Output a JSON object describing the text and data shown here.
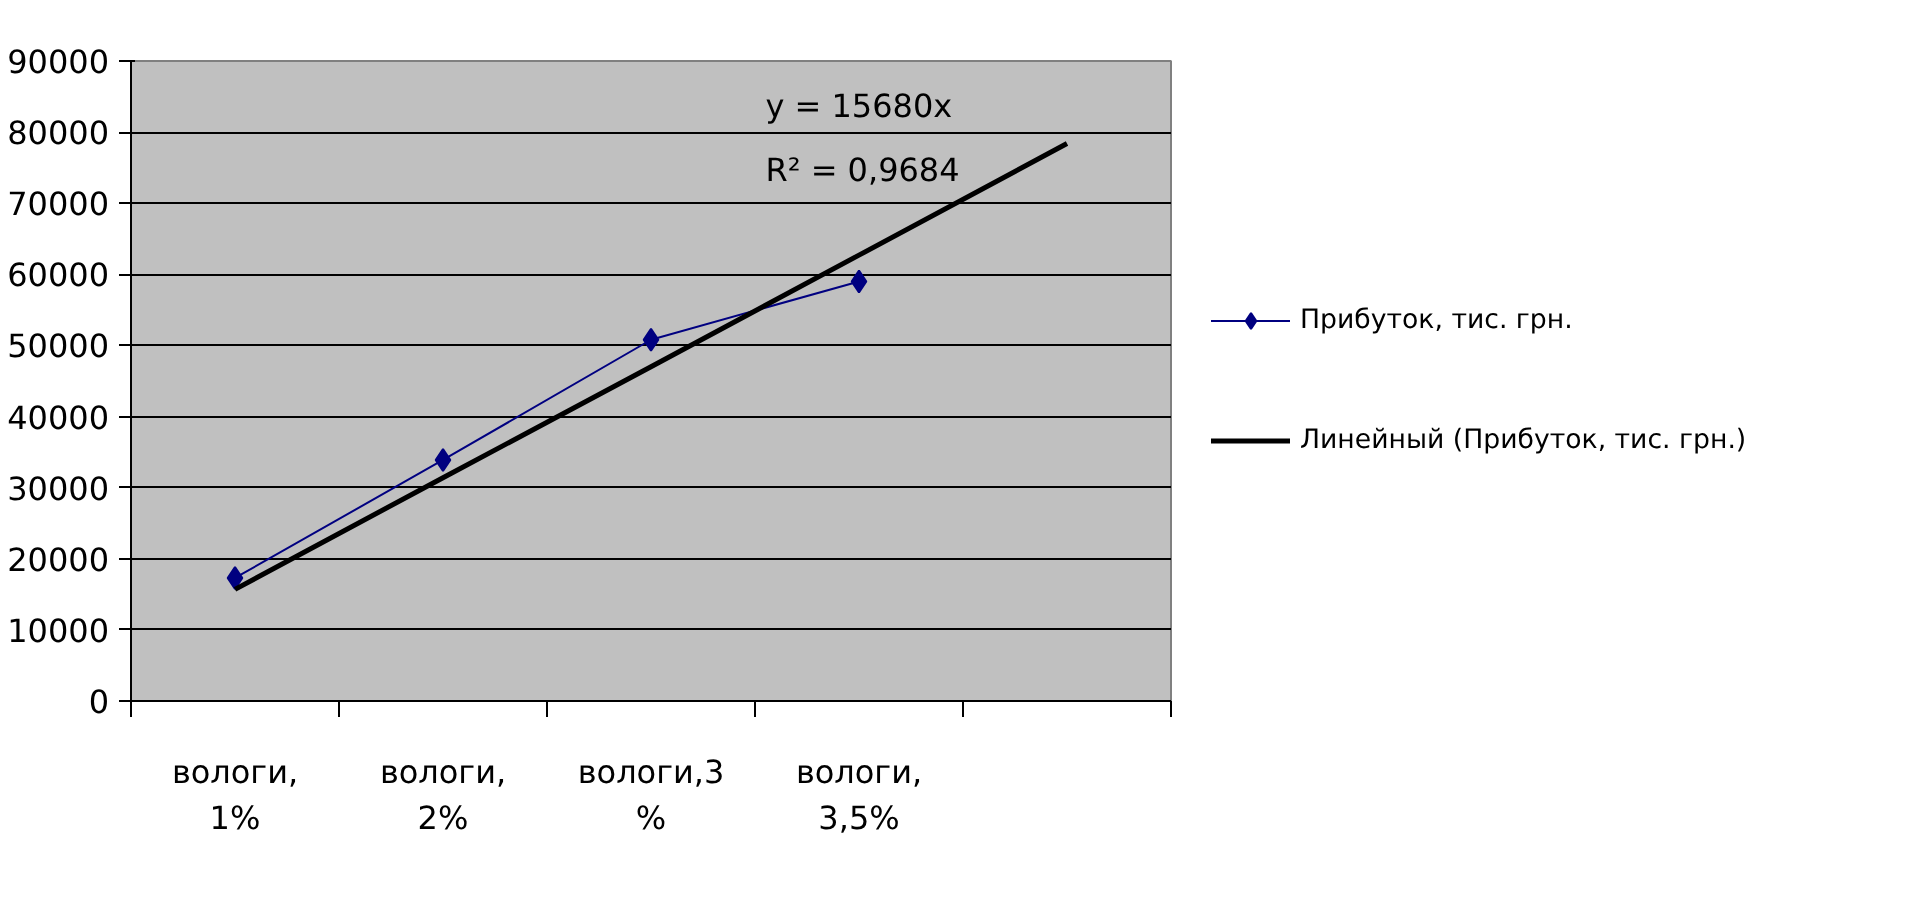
{
  "chart_data": {
    "type": "line",
    "categories": [
      "вологи, 1%",
      "вологи, 2%",
      "вологи,3 %",
      "вологи, 3,5%",
      null
    ],
    "series": [
      {
        "name": "Прибуток, тис. грн.",
        "color": "#000080",
        "values": [
          17300,
          33900,
          50800,
          59000,
          null
        ],
        "marker": "diamond"
      },
      {
        "name": "Линейный (Прибуток, тис. грн.)",
        "color": "#000000",
        "values": [
          15700,
          31400,
          47000,
          62700,
          78400
        ],
        "marker": "none"
      }
    ],
    "ylim": [
      0,
      90000
    ],
    "yticks": [
      0,
      10000,
      20000,
      30000,
      40000,
      50000,
      60000,
      70000,
      80000,
      90000
    ],
    "grid": "y",
    "legend": "right",
    "line_style": "solid",
    "annotations": [
      "y = 15680x",
      "R² = 0,9684"
    ]
  }
}
